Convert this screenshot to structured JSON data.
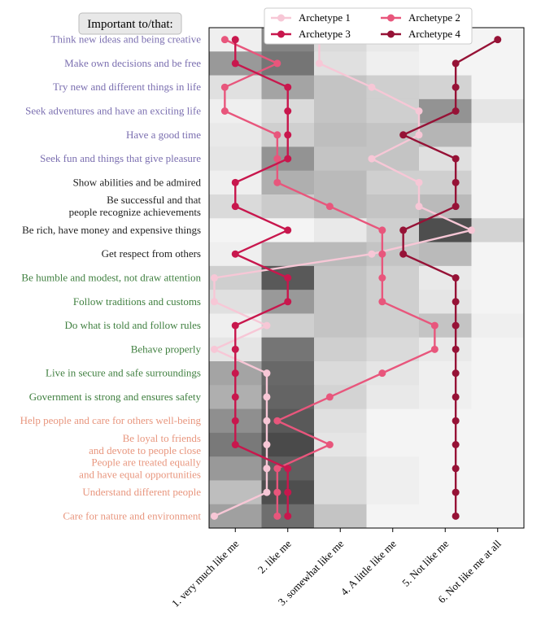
{
  "chart_data": {
    "type": "heatmap+line",
    "title": "Important to/that:",
    "x_ticks": [
      "1. very much like me",
      "2. like me",
      "3. somewhat like me",
      "4. A little like me",
      "5. Not like me",
      "6. Not like me at all"
    ],
    "rows": [
      {
        "label": "Think new ideas and being creative",
        "group": "openness"
      },
      {
        "label": "Make own decisions and be free",
        "group": "openness"
      },
      {
        "label": "Try new and different things in life",
        "group": "openness"
      },
      {
        "label": "Seek adventures and have an exciting life",
        "group": "openness"
      },
      {
        "label": "Have a good time",
        "group": "openness"
      },
      {
        "label": "Seek fun and things that give pleasure",
        "group": "openness"
      },
      {
        "label": "Show abilities and be admired",
        "group": "self"
      },
      {
        "label": "Be successful and that\npeople recognize achievements",
        "group": "self"
      },
      {
        "label": "Be rich, have money and expensive things",
        "group": "self"
      },
      {
        "label": "Get respect from others",
        "group": "self"
      },
      {
        "label": "Be humble and modest, not draw attention",
        "group": "conservation"
      },
      {
        "label": "Follow traditions and customs",
        "group": "conservation"
      },
      {
        "label": "Do what is told and follow rules",
        "group": "conservation"
      },
      {
        "label": "Behave properly",
        "group": "conservation"
      },
      {
        "label": "Live in secure and safe surroundings",
        "group": "conservation"
      },
      {
        "label": "Government is strong and ensures safety",
        "group": "conservation"
      },
      {
        "label": "Help people and care for others well-being",
        "group": "transcendence"
      },
      {
        "label": "Be loyal to friends\nand devote to people close",
        "group": "transcendence"
      },
      {
        "label": "People are treated equally\nand have equal opportunities",
        "group": "transcendence"
      },
      {
        "label": "Understand different people",
        "group": "transcendence"
      },
      {
        "label": "Care for nature and environment",
        "group": "transcendence"
      }
    ],
    "group_colors": {
      "openness": "#7b6fb0",
      "self": "#222222",
      "conservation": "#3f7f3f",
      "transcendence": "#e8967e"
    },
    "heatmap": [
      [
        0.05,
        0.55,
        0.15,
        0.08,
        0.03,
        0.03
      ],
      [
        0.45,
        0.62,
        0.12,
        0.05,
        0.03,
        0.03
      ],
      [
        0.12,
        0.4,
        0.25,
        0.2,
        0.18,
        0.03
      ],
      [
        0.05,
        0.15,
        0.25,
        0.2,
        0.48,
        0.1
      ],
      [
        0.08,
        0.2,
        0.28,
        0.25,
        0.32,
        0.03
      ],
      [
        0.1,
        0.48,
        0.25,
        0.25,
        0.12,
        0.03
      ],
      [
        0.05,
        0.35,
        0.3,
        0.2,
        0.2,
        0.03
      ],
      [
        0.15,
        0.22,
        0.3,
        0.25,
        0.3,
        0.03
      ],
      [
        0.03,
        0.03,
        0.08,
        0.2,
        0.8,
        0.18
      ],
      [
        0.05,
        0.3,
        0.3,
        0.25,
        0.3,
        0.03
      ],
      [
        0.2,
        0.75,
        0.25,
        0.2,
        0.08,
        0.03
      ],
      [
        0.12,
        0.45,
        0.25,
        0.2,
        0.1,
        0.03
      ],
      [
        0.05,
        0.2,
        0.25,
        0.2,
        0.25,
        0.05
      ],
      [
        0.1,
        0.62,
        0.2,
        0.15,
        0.08,
        0.03
      ],
      [
        0.4,
        0.68,
        0.15,
        0.1,
        0.05,
        0.03
      ],
      [
        0.35,
        0.7,
        0.18,
        0.08,
        0.05,
        0.03
      ],
      [
        0.5,
        0.75,
        0.12,
        0.03,
        0.03,
        0.03
      ],
      [
        0.6,
        0.82,
        0.1,
        0.03,
        0.03,
        0.03
      ],
      [
        0.45,
        0.72,
        0.15,
        0.05,
        0.03,
        0.03
      ],
      [
        0.28,
        0.8,
        0.15,
        0.05,
        0.03,
        0.03
      ],
      [
        0.42,
        0.65,
        0.25,
        0.03,
        0.03,
        0.03
      ]
    ],
    "series": [
      {
        "name": "Archetype 1",
        "color": "#f7c7d6",
        "values": [
          2.6,
          2.6,
          3.6,
          4.5,
          4.5,
          3.6,
          4.5,
          4.5,
          5.5,
          3.6,
          0.6,
          0.6,
          1.6,
          0.6,
          1.6,
          1.6,
          1.6,
          1.6,
          1.6,
          1.6,
          0.6
        ]
      },
      {
        "name": "Archetype 2",
        "color": "#e8567c",
        "values": [
          0.8,
          1.8,
          0.8,
          0.8,
          1.8,
          1.8,
          1.8,
          2.8,
          3.8,
          3.8,
          3.8,
          3.8,
          4.8,
          4.8,
          3.8,
          2.8,
          1.8,
          2.8,
          1.8,
          1.8,
          1.8
        ]
      },
      {
        "name": "Archetype 3",
        "color": "#c8174d",
        "values": [
          1.0,
          1.0,
          2.0,
          2.0,
          2.0,
          2.0,
          1.0,
          1.0,
          2.0,
          1.0,
          2.0,
          2.0,
          1.0,
          1.0,
          1.0,
          1.0,
          1.0,
          1.0,
          2.0,
          2.0,
          2.0
        ]
      },
      {
        "name": "Archetype 4",
        "color": "#961236",
        "values": [
          6.0,
          5.2,
          5.2,
          5.2,
          4.2,
          5.2,
          5.2,
          5.2,
          4.2,
          4.2,
          5.2,
          5.2,
          5.2,
          5.2,
          5.2,
          5.2,
          5.2,
          5.2,
          5.2,
          5.2,
          5.2
        ]
      }
    ],
    "legend_position": "top-center",
    "grid": false
  }
}
